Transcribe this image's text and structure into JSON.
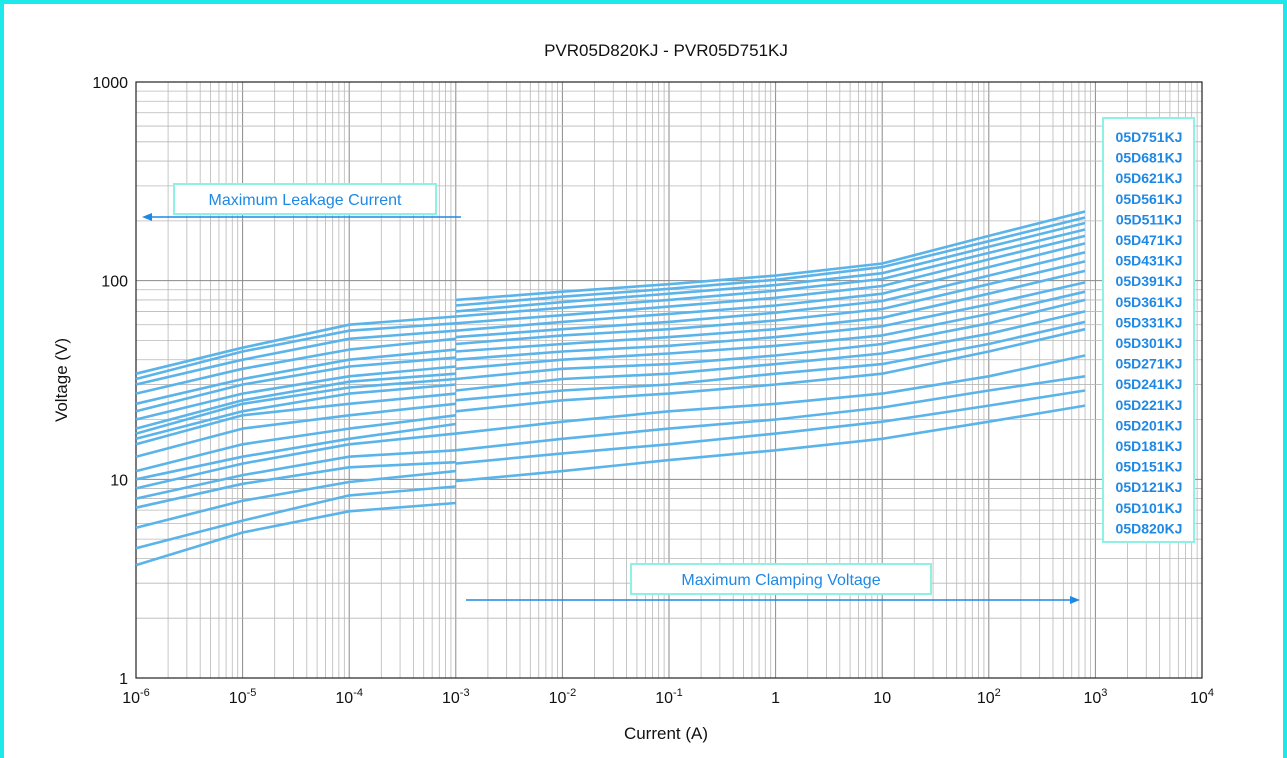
{
  "chart_data": {
    "type": "line",
    "title": "PVR05D820KJ - PVR05D751KJ",
    "xlabel": "Current (A)",
    "ylabel": "Voltage (V)",
    "x_scale": "log",
    "y_scale": "log",
    "xlim": [
      1e-06,
      10000
    ],
    "ylim": [
      1,
      1000
    ],
    "x_ticks": [
      {
        "value": 1e-06,
        "base": "10",
        "exp": "-6"
      },
      {
        "value": 1e-05,
        "base": "10",
        "exp": "-5"
      },
      {
        "value": 0.0001,
        "base": "10",
        "exp": "-4"
      },
      {
        "value": 0.001,
        "base": "10",
        "exp": "-3"
      },
      {
        "value": 0.01,
        "base": "10",
        "exp": "-2"
      },
      {
        "value": 0.1,
        "base": "10",
        "exp": "-1"
      },
      {
        "value": 1,
        "base": "1",
        "exp": ""
      },
      {
        "value": 10,
        "base": "10",
        "exp": ""
      },
      {
        "value": 100,
        "base": "10",
        "exp": "2"
      },
      {
        "value": 1000,
        "base": "10",
        "exp": "3"
      },
      {
        "value": 10000,
        "base": "10",
        "exp": "4"
      }
    ],
    "y_ticks": [
      {
        "value": 1,
        "label": "1"
      },
      {
        "value": 10,
        "label": "10"
      },
      {
        "value": 100,
        "label": "100"
      },
      {
        "value": 1000,
        "label": "1000"
      }
    ],
    "grid": true,
    "legend_placement": "right",
    "line_color": "#5ab4ea",
    "legend_color": "#1e88e5",
    "annotation_color": "#1e88e5",
    "box_border_color": "#8ff0e4",
    "frame_color": "#1ee8ea",
    "leakage_x": [
      1e-06,
      1e-05,
      0.0001,
      0.001
    ],
    "clamping_x": [
      0.001,
      0.01,
      0.1,
      1,
      10,
      100,
      800
    ],
    "series": [
      {
        "name": "05D751KJ",
        "leakage": [
          34,
          46,
          60,
          66
        ],
        "clamping": [
          80,
          88,
          96,
          106,
          122,
          168,
          223
        ]
      },
      {
        "name": "05D681KJ",
        "leakage": [
          32,
          44,
          56,
          61
        ],
        "clamping": [
          75,
          83,
          91,
          101,
          117,
          158,
          208
        ]
      },
      {
        "name": "05D621KJ",
        "leakage": [
          30,
          40,
          51,
          56
        ],
        "clamping": [
          70,
          78,
          86,
          95,
          109,
          148,
          195
        ]
      },
      {
        "name": "05D561KJ",
        "leakage": [
          27,
          36,
          45,
          51
        ],
        "clamping": [
          66,
          73,
          80,
          89,
          102,
          138,
          181
        ]
      },
      {
        "name": "05D511KJ",
        "leakage": [
          24,
          32,
          40,
          45
        ],
        "clamping": [
          61,
          67,
          74,
          82,
          94,
          128,
          168
        ]
      },
      {
        "name": "05D471KJ",
        "leakage": [
          22,
          30,
          37,
          41
        ],
        "clamping": [
          56,
          62,
          68,
          75,
          86,
          117,
          154
        ]
      },
      {
        "name": "05D431KJ",
        "leakage": [
          20,
          27,
          33,
          37
        ],
        "clamping": [
          52,
          57,
          62,
          69,
          79,
          106,
          139
        ]
      },
      {
        "name": "05D391KJ",
        "leakage": [
          18,
          25,
          31,
          34
        ],
        "clamping": [
          48,
          53,
          57,
          63,
          72,
          96,
          125
        ]
      },
      {
        "name": "05D361KJ",
        "leakage": [
          17,
          24,
          29,
          32
        ],
        "clamping": [
          44,
          48,
          52,
          57,
          65,
          86,
          112
        ]
      },
      {
        "name": "05D331KJ",
        "leakage": [
          16,
          22,
          27,
          30
        ],
        "clamping": [
          40,
          44,
          47,
          52,
          59,
          76,
          98
        ]
      },
      {
        "name": "05D301KJ",
        "leakage": [
          15,
          21,
          24,
          27
        ],
        "clamping": [
          36,
          40,
          43,
          47,
          53,
          68,
          88
        ]
      },
      {
        "name": "05D271KJ",
        "leakage": [
          13,
          18,
          21,
          24
        ],
        "clamping": [
          32,
          36,
          38,
          42,
          48,
          61,
          80
        ]
      },
      {
        "name": "05D241KJ",
        "leakage": [
          11,
          15,
          18,
          21
        ],
        "clamping": [
          28,
          32,
          34,
          38,
          43,
          54,
          70
        ]
      },
      {
        "name": "05D221KJ",
        "leakage": [
          10,
          13,
          16,
          19
        ],
        "clamping": [
          25,
          28,
          30,
          34,
          38,
          48,
          62
        ]
      },
      {
        "name": "05D201KJ",
        "leakage": [
          9,
          12,
          15,
          17
        ],
        "clamping": [
          22,
          25,
          27,
          30,
          34,
          44,
          57
        ]
      },
      {
        "name": "05D181KJ",
        "leakage": [
          8,
          10.5,
          13,
          14
        ],
        "clamping": [
          17,
          19.5,
          22,
          24,
          27,
          33,
          42
        ]
      },
      {
        "name": "05D151KJ",
        "leakage": [
          7.2,
          9.5,
          11.5,
          12.2
        ],
        "clamping": [
          14,
          16,
          18,
          20,
          23,
          28,
          33
        ]
      },
      {
        "name": "05D121KJ",
        "leakage": [
          5.7,
          7.8,
          9.7,
          11
        ],
        "clamping": [
          12,
          13.5,
          15,
          17,
          19.5,
          23.5,
          28
        ]
      },
      {
        "name": "05D101KJ",
        "leakage": [
          4.5,
          6.2,
          8.3,
          9.2
        ],
        "clamping": [
          9.8,
          11,
          12.5,
          14,
          16,
          19.5,
          23.5
        ]
      },
      {
        "name": "05D820KJ",
        "leakage": [
          3.7,
          5.4,
          6.9,
          7.6
        ],
        "clamping": []
      }
    ],
    "annotations": {
      "leakage": "Maximum Leakage Current",
      "clamping": "Maximum Clamping Voltage"
    }
  }
}
